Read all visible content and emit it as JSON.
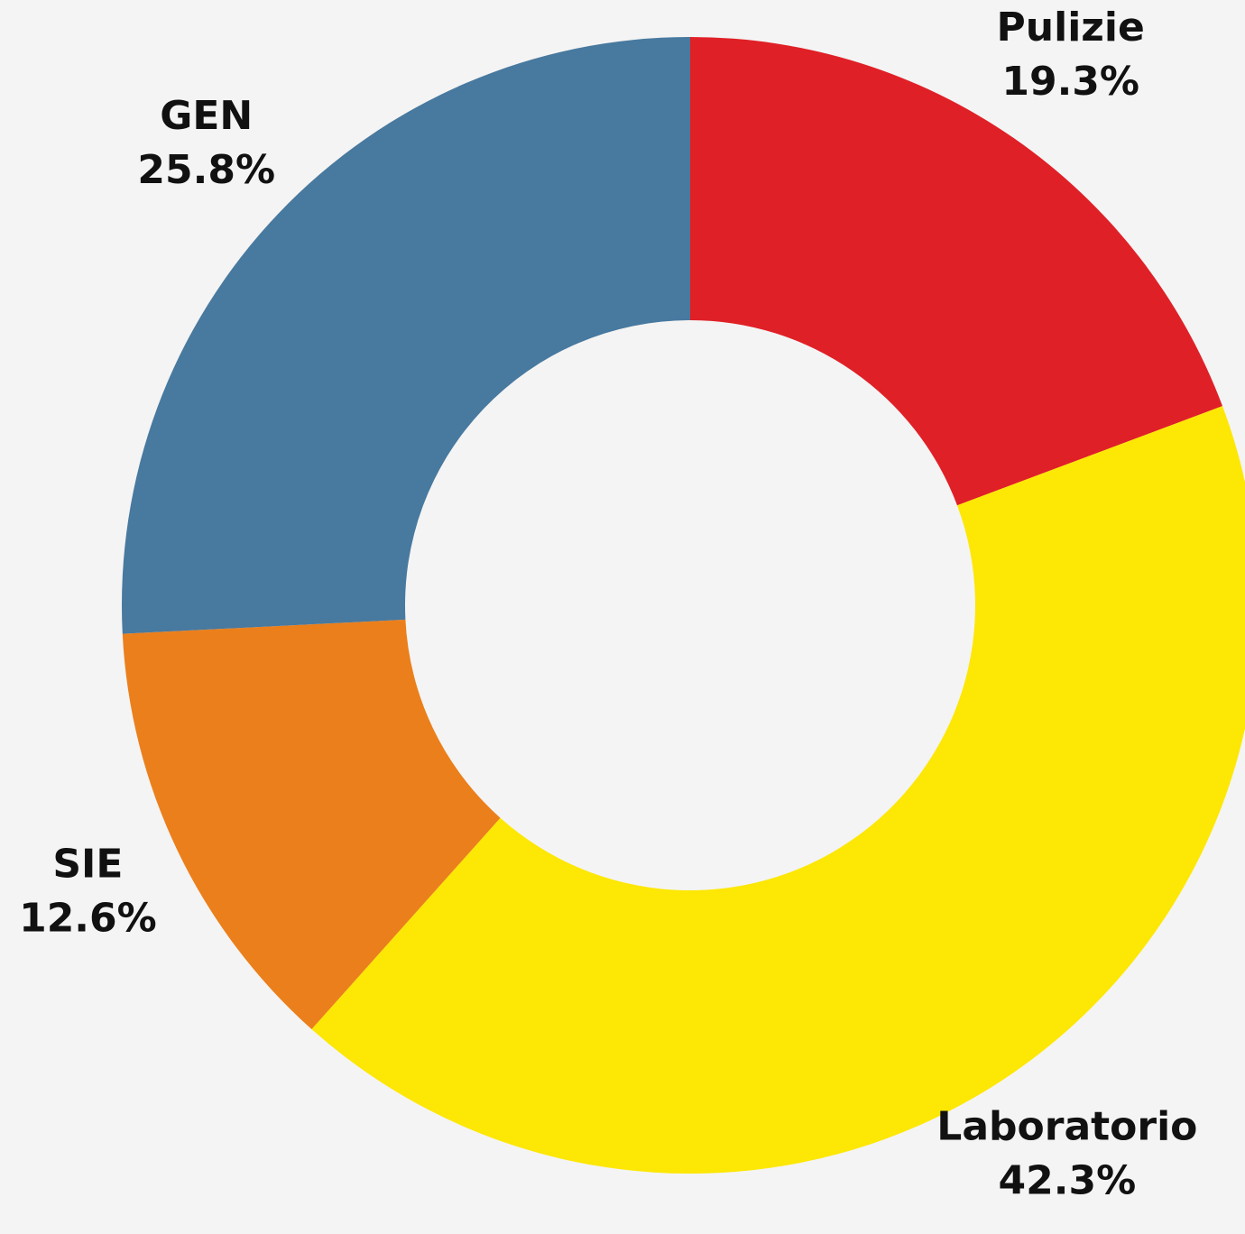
{
  "chart_data": {
    "type": "donut",
    "categories": [
      "Pulizie",
      "Laboratorio",
      "SIE",
      "GEN"
    ],
    "values": [
      19.3,
      42.3,
      12.6,
      25.8
    ],
    "value_labels": [
      "19.3%",
      "42.3%",
      "12.6%",
      "25.8%"
    ],
    "colors": [
      "#e02027",
      "#fde704",
      "#eb7f1b",
      "#48799f"
    ]
  }
}
